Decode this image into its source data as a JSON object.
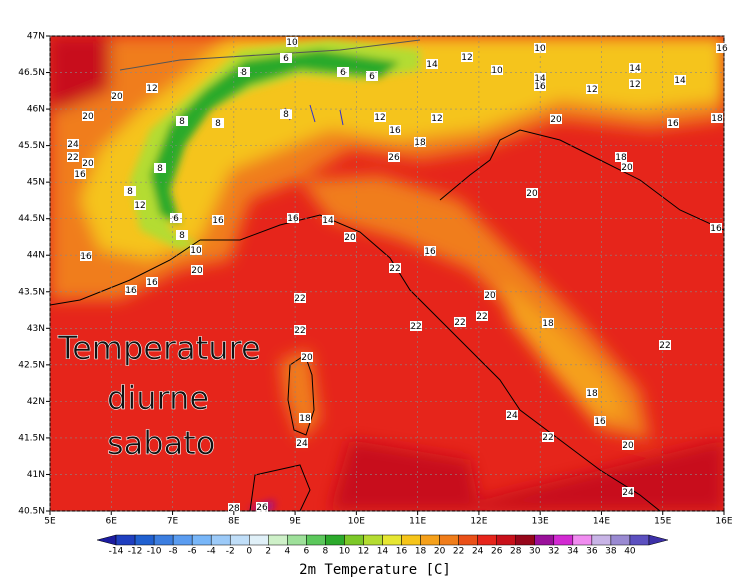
{
  "map": {
    "lon_axis": {
      "lim": [
        5,
        16
      ],
      "ticks": [
        {
          "value": 5,
          "label": "5E"
        },
        {
          "value": 6,
          "label": "6E"
        },
        {
          "value": 7,
          "label": "7E"
        },
        {
          "value": 8,
          "label": "8E"
        },
        {
          "value": 9,
          "label": "9E"
        },
        {
          "value": 10,
          "label": "10E"
        },
        {
          "value": 11,
          "label": "11E"
        },
        {
          "value": 12,
          "label": "12E"
        },
        {
          "value": 13,
          "label": "13E"
        },
        {
          "value": 14,
          "label": "14E"
        },
        {
          "value": 15,
          "label": "15E"
        },
        {
          "value": 16,
          "label": "16E"
        }
      ]
    },
    "lat_axis": {
      "lim": [
        40.5,
        47
      ],
      "ticks": [
        {
          "value": 40.5,
          "label": "40.5N"
        },
        {
          "value": 41,
          "label": "41N"
        },
        {
          "value": 41.5,
          "label": "41.5N"
        },
        {
          "value": 42,
          "label": "42N"
        },
        {
          "value": 42.5,
          "label": "42.5N"
        },
        {
          "value": 43,
          "label": "43N"
        },
        {
          "value": 43.5,
          "label": "43.5N"
        },
        {
          "value": 44,
          "label": "44N"
        },
        {
          "value": 44.5,
          "label": "44.5N"
        },
        {
          "value": 45,
          "label": "45N"
        },
        {
          "value": 45.5,
          "label": "45.5N"
        },
        {
          "value": 46,
          "label": "46N"
        },
        {
          "value": 46.5,
          "label": "46.5N"
        },
        {
          "value": 47,
          "label": "47N"
        }
      ]
    },
    "map_labels": [
      10,
      6,
      6,
      6,
      8,
      14,
      12,
      10,
      10,
      14,
      16,
      12,
      14,
      12,
      14,
      16,
      12,
      20,
      20,
      24,
      22,
      20,
      16,
      8,
      8,
      8,
      12,
      16,
      12,
      18,
      26,
      20,
      16,
      18,
      18,
      20,
      20,
      8,
      12,
      8,
      6,
      16,
      16,
      14,
      20,
      8,
      10,
      16,
      22,
      20,
      16,
      16,
      16,
      22,
      20,
      22,
      22,
      22,
      22,
      18,
      22,
      20,
      18,
      18,
      16,
      24,
      24,
      22,
      20,
      24,
      26,
      28,
      16
    ],
    "overlay": [
      "Temperature",
      "diurne",
      "sabato"
    ],
    "colorbar": {
      "title": "2m Temperature [C]",
      "labels": [
        -14,
        -12,
        -10,
        -8,
        -6,
        -4,
        -2,
        0,
        2,
        4,
        6,
        8,
        10,
        12,
        14,
        16,
        18,
        20,
        22,
        24,
        26,
        28,
        30,
        32,
        34,
        36,
        38,
        40
      ],
      "colors": [
        "#1c1ca0",
        "#1f3fc0",
        "#2060d0",
        "#3c7ee0",
        "#5a9cf0",
        "#78b6f8",
        "#9ccaf8",
        "#c0def8",
        "#e0f0f8",
        "#cef0c8",
        "#9ee09a",
        "#5cc85c",
        "#2caa2c",
        "#7cc828",
        "#b4dc32",
        "#e6e632",
        "#f5c41a",
        "#f5a01a",
        "#f07d1a",
        "#ea5018",
        "#e6251b",
        "#c8101a",
        "#96061a",
        "#9a109a",
        "#d22ad2",
        "#f08cf0",
        "#c8b4e6",
        "#9a8ad2",
        "#5c50c0",
        "#3c30a8"
      ]
    }
  }
}
